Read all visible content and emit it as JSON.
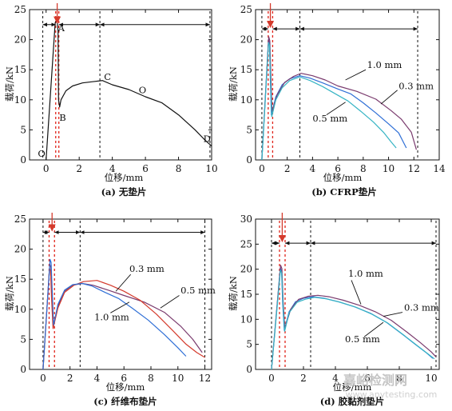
{
  "watermark": {
    "title": "嘉峪检测网",
    "url": "www.anytesting.com"
  },
  "colors": {
    "black": "#111111",
    "blue": "#2f6fd6",
    "cyan": "#36b4c4",
    "red": "#d43a2c",
    "purple": "#7a3b6e",
    "dash_red": "#e0251c",
    "marker": "#d43a2c"
  },
  "chart_data": [
    {
      "type": "line",
      "caption": "(a) 无垫片",
      "xlabel": "位移/mm",
      "ylabel": "载荷/kN",
      "xlim": [
        -1,
        10
      ],
      "ylim": [
        0,
        25
      ],
      "xticks": [
        0,
        2,
        4,
        6,
        8,
        10
      ],
      "yticks": [
        0,
        5,
        10,
        15,
        20,
        25
      ],
      "grid": false,
      "legend": "none",
      "series": [
        {
          "color": "black",
          "x": [
            0,
            0.55,
            0.66,
            0.72,
            0.75,
            0.82,
            0.9,
            1.2,
            1.6,
            2.2,
            2.8,
            3.4,
            4.0,
            5.0,
            6.0,
            7.0,
            8.0,
            9.0,
            9.6,
            10.0
          ],
          "y": [
            0,
            22.8,
            23.3,
            21.5,
            10.0,
            8.8,
            10.0,
            11.5,
            12.3,
            12.8,
            13.0,
            13.2,
            12.5,
            11.7,
            10.5,
            9.5,
            7.5,
            5.0,
            3.3,
            2.3
          ]
        }
      ],
      "annotations": [
        {
          "text": "A",
          "x": 0.72,
          "y": 21.4
        },
        {
          "text": "B",
          "x": 0.8,
          "y": 6.5
        },
        {
          "text": "C",
          "x": 3.5,
          "y": 13.3
        },
        {
          "text": "O",
          "x": 5.6,
          "y": 11.1
        },
        {
          "text": "D",
          "x": 9.5,
          "y": 3.0
        },
        {
          "text": "O",
          "x": -0.5,
          "y": 0.5
        }
      ],
      "dash_black": [
        -0.2,
        3.25,
        9.9
      ],
      "dash_red": [
        0.58,
        0.77
      ],
      "arrow_y": 22.5,
      "arrow_segs": [
        [
          -0.2,
          0.58
        ],
        [
          0.77,
          3.25
        ],
        [
          3.25,
          9.9
        ]
      ],
      "marker_x": 0.67
    },
    {
      "type": "line",
      "caption": "(b) CFRP垫片",
      "xlabel": "位移/mm",
      "ylabel": "载荷/kN",
      "xlim": [
        -0.5,
        14
      ],
      "ylim": [
        0,
        25
      ],
      "xticks": [
        0,
        2,
        4,
        6,
        8,
        10,
        12,
        14
      ],
      "yticks": [
        0,
        5,
        10,
        15,
        20,
        25
      ],
      "grid": false,
      "legend": "none",
      "series": [
        {
          "name": "1.0 mm",
          "color": "blue",
          "x": [
            0,
            0.52,
            0.6,
            0.66,
            0.75,
            1.1,
            1.6,
            2.2,
            3.0,
            3.8,
            4.8,
            6.0,
            7.0,
            8.0,
            9.0,
            10.0,
            10.8,
            11.4
          ],
          "y": [
            0,
            20.0,
            19.6,
            14.0,
            7.5,
            10.5,
            12.5,
            13.5,
            14.0,
            13.6,
            12.8,
            11.8,
            11.0,
            9.5,
            7.8,
            6.0,
            4.5,
            2.0
          ]
        },
        {
          "name": "0.3 mm",
          "color": "purple",
          "x": [
            0,
            0.54,
            0.63,
            0.7,
            0.8,
            1.2,
            1.8,
            2.5,
            3.1,
            4.0,
            5.0,
            6.0,
            7.5,
            9.0,
            10.2,
            11.0,
            11.8,
            12.2
          ],
          "y": [
            0,
            20.5,
            19.8,
            14.8,
            8.0,
            10.8,
            12.9,
            13.9,
            14.4,
            14.0,
            13.3,
            12.3,
            11.4,
            10.1,
            8.2,
            6.8,
            4.6,
            1.7
          ]
        },
        {
          "name": "0.5 mm",
          "color": "cyan",
          "x": [
            0,
            0.53,
            0.61,
            0.68,
            0.78,
            1.1,
            1.6,
            2.2,
            3.0,
            3.8,
            4.8,
            5.8,
            6.8,
            7.8,
            8.8,
            9.6,
            10.2,
            10.6
          ],
          "y": [
            0,
            19.5,
            19.0,
            13.5,
            7.2,
            10.0,
            12.0,
            13.2,
            13.8,
            13.2,
            12.2,
            11.0,
            9.8,
            8.1,
            6.3,
            4.6,
            3.0,
            2.0
          ]
        }
      ],
      "annotations": [
        {
          "text": "1.0 mm",
          "x": 8.3,
          "y": 15.3
        },
        {
          "text": "0.3 mm",
          "x": 10.8,
          "y": 11.8
        },
        {
          "text": "0.5 mm",
          "x": 4.0,
          "y": 6.4
        }
      ],
      "pointers": [
        {
          "from": [
            8.2,
            15.0
          ],
          "to": [
            6.6,
            13.3
          ]
        },
        {
          "from": [
            10.7,
            11.6
          ],
          "to": [
            9.4,
            9.3
          ]
        },
        {
          "from": [
            5.1,
            7.5
          ],
          "to": [
            6.6,
            9.6
          ]
        }
      ],
      "dash_black": [
        0,
        3.0,
        12.3
      ],
      "dash_red": [
        0.5,
        0.85
      ],
      "arrow_y": 21.8,
      "arrow_segs": [
        [
          0,
          0.5
        ],
        [
          0.85,
          3.0
        ],
        [
          3.0,
          12.3
        ]
      ],
      "marker_x": 0.67
    },
    {
      "type": "line",
      "caption": "(c) 纤维布垫片",
      "xlabel": "位移/mm",
      "ylabel": "载荷/kN",
      "xlim": [
        -1,
        12.5
      ],
      "ylim": [
        0,
        25
      ],
      "xticks": [
        0,
        2,
        4,
        6,
        8,
        10,
        12
      ],
      "yticks": [
        0,
        5,
        10,
        15,
        20,
        25
      ],
      "grid": false,
      "legend": "none",
      "series": [
        {
          "name": "0.3 mm",
          "color": "purple",
          "x": [
            0,
            0.5,
            0.58,
            0.66,
            0.76,
            1.1,
            1.6,
            2.2,
            2.9,
            3.7,
            4.8,
            6.0,
            7.5,
            9.0,
            10.2,
            11.1,
            11.8
          ],
          "y": [
            0,
            17.5,
            17.0,
            12.5,
            7.0,
            10.5,
            13.0,
            14.0,
            14.3,
            14.0,
            13.2,
            12.3,
            11.2,
            9.5,
            7.2,
            5.0,
            2.8
          ]
        },
        {
          "name": "0.5 mm",
          "color": "red",
          "x": [
            0,
            0.48,
            0.56,
            0.63,
            0.74,
            1.1,
            1.6,
            2.3,
            3.0,
            4.0,
            5.0,
            6.0,
            7.2,
            8.4,
            9.6,
            10.6,
            11.4,
            12.0
          ],
          "y": [
            0,
            16.8,
            16.4,
            12.0,
            6.8,
            10.2,
            12.8,
            14.0,
            14.6,
            14.8,
            14.0,
            13.0,
            11.5,
            9.2,
            6.5,
            4.2,
            2.8,
            2.0
          ]
        },
        {
          "name": "1.0 mm",
          "color": "blue",
          "x": [
            0,
            0.52,
            0.6,
            0.68,
            0.78,
            1.1,
            1.6,
            2.2,
            2.9,
            3.6,
            4.6,
            5.6,
            6.6,
            7.8,
            9.0,
            10.0,
            10.6
          ],
          "y": [
            0,
            18.3,
            17.8,
            13.0,
            7.4,
            10.8,
            13.2,
            14.1,
            14.3,
            13.9,
            12.8,
            11.8,
            10.2,
            8.2,
            5.8,
            3.6,
            2.2
          ]
        }
      ],
      "annotations": [
        {
          "text": "0.3 mm",
          "x": 6.4,
          "y": 16.2
        },
        {
          "text": "0.5 mm",
          "x": 10.2,
          "y": 12.6
        },
        {
          "text": "1.0 mm",
          "x": 3.8,
          "y": 8.2
        }
      ],
      "pointers": [
        {
          "from": [
            6.5,
            15.8
          ],
          "to": [
            5.4,
            13.0
          ]
        },
        {
          "from": [
            10.1,
            12.3
          ],
          "to": [
            8.7,
            10.2
          ]
        },
        {
          "from": [
            5.0,
            9.4
          ],
          "to": [
            6.4,
            11.2
          ]
        }
      ],
      "dash_black": [
        0,
        2.75,
        12.0
      ],
      "dash_red": [
        0.45,
        0.85
      ],
      "arrow_y": 22.8,
      "arrow_segs": [
        [
          0,
          0.45
        ],
        [
          0.85,
          2.75
        ],
        [
          2.75,
          12.0
        ]
      ],
      "marker_x": 0.67
    },
    {
      "type": "line",
      "caption": "(d) 胶黏剂垫片",
      "xlabel": "位移/mm",
      "ylabel": "载荷/kN",
      "xlim": [
        -1,
        10.5
      ],
      "ylim": [
        0,
        30
      ],
      "xticks": [
        0,
        2,
        4,
        6,
        8,
        10
      ],
      "yticks": [
        0,
        5,
        10,
        15,
        20,
        25,
        30
      ],
      "grid": false,
      "legend": "none",
      "series": [
        {
          "name": "1.0 mm",
          "color": "blue",
          "x": [
            0,
            0.55,
            0.63,
            0.7,
            0.8,
            1.1,
            1.5,
            2.0,
            2.6,
            3.3,
            4.2,
            5.2,
            6.2,
            7.2,
            8.2,
            9.0,
            9.7,
            10.1
          ],
          "y": [
            0,
            20.3,
            19.6,
            13.0,
            7.8,
            11.5,
            13.5,
            14.2,
            14.5,
            14.2,
            13.5,
            12.5,
            11.2,
            9.4,
            7.0,
            5.0,
            3.3,
            2.2
          ]
        },
        {
          "name": "0.3 mm",
          "color": "purple",
          "x": [
            0,
            0.57,
            0.65,
            0.73,
            0.83,
            1.2,
            1.7,
            2.3,
            2.9,
            3.6,
            4.5,
            5.5,
            6.5,
            7.5,
            8.5,
            9.3,
            10.0,
            10.3
          ],
          "y": [
            0,
            20.8,
            20.1,
            13.5,
            8.2,
            12.0,
            14.0,
            14.6,
            14.8,
            14.5,
            13.8,
            12.8,
            11.5,
            9.8,
            7.4,
            5.4,
            3.5,
            2.5
          ]
        },
        {
          "name": "0.5 mm",
          "color": "cyan",
          "x": [
            0,
            0.56,
            0.64,
            0.72,
            0.82,
            1.1,
            1.6,
            2.1,
            2.7,
            3.4,
            4.3,
            5.3,
            6.3,
            7.3,
            8.3,
            9.1,
            9.8,
            10.2
          ],
          "y": [
            0,
            19.8,
            19.2,
            12.7,
            7.6,
            11.3,
            13.4,
            14.0,
            14.4,
            14.1,
            13.4,
            12.4,
            11.0,
            9.2,
            6.8,
            4.8,
            3.1,
            2.1
          ]
        }
      ],
      "annotations": [
        {
          "text": "1.0 mm",
          "x": 4.8,
          "y": 18.5
        },
        {
          "text": "0.3 mm",
          "x": 8.3,
          "y": 11.7
        },
        {
          "text": "0.5 mm",
          "x": 4.6,
          "y": 5.4
        }
      ],
      "pointers": [
        {
          "from": [
            5.0,
            17.8
          ],
          "to": [
            5.6,
            13.0
          ]
        },
        {
          "from": [
            8.2,
            11.4
          ],
          "to": [
            7.0,
            10.6
          ]
        },
        {
          "from": [
            5.8,
            6.5
          ],
          "to": [
            7.0,
            9.4
          ]
        }
      ],
      "dash_black": [
        0,
        2.45,
        10.3
      ],
      "dash_red": [
        0.5,
        0.85
      ],
      "arrow_y": 25.2,
      "arrow_segs": [
        [
          0,
          0.5
        ],
        [
          0.85,
          2.45
        ],
        [
          2.45,
          10.3
        ]
      ],
      "marker_x": 0.67
    }
  ]
}
